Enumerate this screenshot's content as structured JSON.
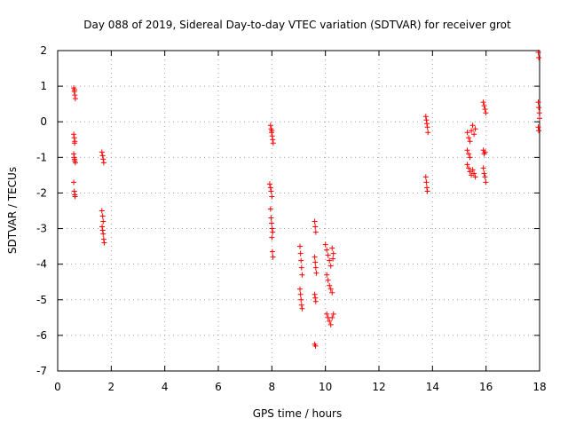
{
  "chart_data": {
    "type": "scatter",
    "title": "Day 088 of 2019, Sidereal Day-to-day VTEC variation (SDTVAR) for receiver grot",
    "xlabel": "GPS time / hours",
    "ylabel": "SDTVAR / TECUs",
    "xlim": [
      0,
      18
    ],
    "ylim": [
      -7,
      2
    ],
    "xticks": [
      0,
      2,
      4,
      6,
      8,
      10,
      12,
      14,
      16,
      18
    ],
    "yticks": [
      -7,
      -6,
      -5,
      -4,
      -3,
      -2,
      -1,
      0,
      1,
      2
    ],
    "grid": true,
    "marker": "+",
    "marker_color": "#ff0000",
    "series": [
      {
        "name": "SDTVAR",
        "points": [
          [
            0.6,
            0.95
          ],
          [
            0.62,
            0.85
          ],
          [
            0.64,
            0.75
          ],
          [
            0.66,
            0.65
          ],
          [
            0.63,
            0.9
          ],
          [
            0.6,
            -0.35
          ],
          [
            0.62,
            -0.45
          ],
          [
            0.64,
            -0.55
          ],
          [
            0.63,
            -0.6
          ],
          [
            0.6,
            -0.9
          ],
          [
            0.62,
            -1.0
          ],
          [
            0.64,
            -1.1
          ],
          [
            0.66,
            -1.15
          ],
          [
            0.63,
            -1.05
          ],
          [
            0.6,
            -1.7
          ],
          [
            0.62,
            -1.95
          ],
          [
            0.64,
            -2.05
          ],
          [
            0.65,
            -2.1
          ],
          [
            1.65,
            -0.85
          ],
          [
            1.68,
            -0.95
          ],
          [
            1.7,
            -1.05
          ],
          [
            1.72,
            -1.15
          ],
          [
            1.65,
            -2.5
          ],
          [
            1.68,
            -2.65
          ],
          [
            1.7,
            -2.8
          ],
          [
            1.66,
            -2.95
          ],
          [
            1.68,
            -3.05
          ],
          [
            1.7,
            -3.15
          ],
          [
            1.72,
            -3.3
          ],
          [
            1.74,
            -3.4
          ],
          [
            7.95,
            -0.1
          ],
          [
            7.97,
            -0.2
          ],
          [
            7.99,
            -0.3
          ],
          [
            8.01,
            -0.4
          ],
          [
            8.03,
            -0.5
          ],
          [
            8.05,
            -0.6
          ],
          [
            8.0,
            -0.25
          ],
          [
            7.92,
            -1.75
          ],
          [
            7.95,
            -1.85
          ],
          [
            7.97,
            -1.95
          ],
          [
            8.0,
            -2.1
          ],
          [
            7.95,
            -2.45
          ],
          [
            7.97,
            -2.7
          ],
          [
            7.99,
            -2.85
          ],
          [
            8.01,
            -3.0
          ],
          [
            8.03,
            -3.1
          ],
          [
            8.0,
            -3.25
          ],
          [
            8.02,
            -3.65
          ],
          [
            8.04,
            -3.8
          ],
          [
            9.05,
            -3.5
          ],
          [
            9.07,
            -3.7
          ],
          [
            9.09,
            -3.9
          ],
          [
            9.11,
            -4.1
          ],
          [
            9.13,
            -4.3
          ],
          [
            9.05,
            -4.7
          ],
          [
            9.07,
            -4.85
          ],
          [
            9.09,
            -5.0
          ],
          [
            9.11,
            -5.15
          ],
          [
            9.13,
            -5.25
          ],
          [
            9.6,
            -2.8
          ],
          [
            9.62,
            -2.95
          ],
          [
            9.64,
            -3.1
          ],
          [
            9.6,
            -3.8
          ],
          [
            9.62,
            -3.95
          ],
          [
            9.64,
            -4.1
          ],
          [
            9.66,
            -4.25
          ],
          [
            9.6,
            -4.85
          ],
          [
            9.62,
            -4.95
          ],
          [
            9.64,
            -5.05
          ],
          [
            9.6,
            -6.25
          ],
          [
            9.63,
            -6.3
          ],
          [
            10.0,
            -3.45
          ],
          [
            10.05,
            -3.6
          ],
          [
            10.1,
            -3.75
          ],
          [
            10.15,
            -3.9
          ],
          [
            10.2,
            -4.05
          ],
          [
            10.25,
            -3.55
          ],
          [
            10.3,
            -3.7
          ],
          [
            10.28,
            -3.85
          ],
          [
            10.05,
            -4.3
          ],
          [
            10.1,
            -4.45
          ],
          [
            10.15,
            -4.6
          ],
          [
            10.2,
            -4.7
          ],
          [
            10.25,
            -4.8
          ],
          [
            10.05,
            -5.4
          ],
          [
            10.1,
            -5.5
          ],
          [
            10.15,
            -5.6
          ],
          [
            10.2,
            -5.7
          ],
          [
            10.25,
            -5.5
          ],
          [
            10.3,
            -5.4
          ],
          [
            13.75,
            0.15
          ],
          [
            13.77,
            0.05
          ],
          [
            13.79,
            -0.05
          ],
          [
            13.81,
            -0.15
          ],
          [
            13.83,
            -0.3
          ],
          [
            13.75,
            -1.55
          ],
          [
            13.77,
            -1.7
          ],
          [
            13.79,
            -1.85
          ],
          [
            13.81,
            -1.95
          ],
          [
            15.3,
            -0.3
          ],
          [
            15.35,
            -0.45
          ],
          [
            15.4,
            -0.55
          ],
          [
            15.45,
            -0.25
          ],
          [
            15.5,
            -0.1
          ],
          [
            15.55,
            -0.35
          ],
          [
            15.6,
            -0.2
          ],
          [
            15.3,
            -0.8
          ],
          [
            15.35,
            -0.9
          ],
          [
            15.4,
            -1.0
          ],
          [
            15.3,
            -1.2
          ],
          [
            15.35,
            -1.3
          ],
          [
            15.4,
            -1.4
          ],
          [
            15.45,
            -1.5
          ],
          [
            15.5,
            -1.35
          ],
          [
            15.55,
            -1.45
          ],
          [
            15.6,
            -1.55
          ],
          [
            15.9,
            0.55
          ],
          [
            15.93,
            0.45
          ],
          [
            15.96,
            0.35
          ],
          [
            15.99,
            0.25
          ],
          [
            15.9,
            -0.8
          ],
          [
            15.93,
            -0.9
          ],
          [
            15.96,
            -0.85
          ],
          [
            15.9,
            -1.3
          ],
          [
            15.93,
            -1.45
          ],
          [
            15.96,
            -1.55
          ],
          [
            15.99,
            -1.7
          ],
          [
            17.95,
            1.95
          ],
          [
            17.97,
            1.8
          ],
          [
            17.95,
            0.55
          ],
          [
            17.97,
            0.4
          ],
          [
            17.99,
            0.25
          ],
          [
            18.0,
            0.1
          ],
          [
            17.95,
            -0.15
          ],
          [
            17.97,
            -0.25
          ]
        ]
      }
    ]
  }
}
